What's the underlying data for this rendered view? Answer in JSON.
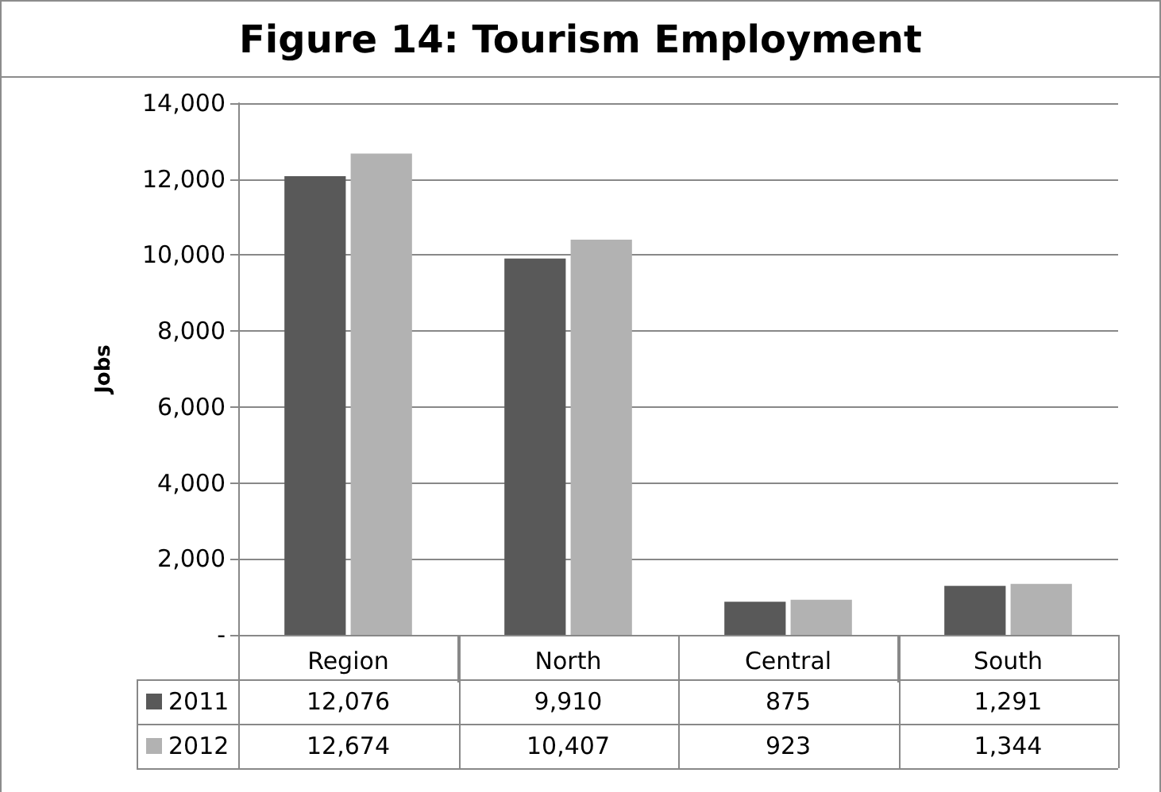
{
  "chart_data": {
    "type": "bar",
    "title": "Figure 14: Tourism Employment",
    "ylabel": "Jobs",
    "categories": [
      "Region",
      "North",
      "Central",
      "South"
    ],
    "series": [
      {
        "name": "2011",
        "color": "#595959",
        "values": [
          12076,
          9910,
          875,
          1291
        ],
        "value_labels": [
          "12,076",
          "9,910",
          "875",
          "1,291"
        ]
      },
      {
        "name": "2012",
        "color": "#b2b2b2",
        "values": [
          12674,
          10407,
          923,
          1344
        ],
        "value_labels": [
          "12,674",
          "10,407",
          "923",
          "1,344"
        ]
      }
    ],
    "ylim": [
      0,
      14000
    ],
    "yticks": [
      {
        "value": 0,
        "label": "-"
      },
      {
        "value": 2000,
        "label": "2,000"
      },
      {
        "value": 4000,
        "label": "4,000"
      },
      {
        "value": 6000,
        "label": "6,000"
      },
      {
        "value": 8000,
        "label": "8,000"
      },
      {
        "value": 10000,
        "label": "10,000"
      },
      {
        "value": 12000,
        "label": "12,000"
      },
      {
        "value": 14000,
        "label": "14,000"
      }
    ],
    "grid": "y",
    "legend": "bottom"
  }
}
